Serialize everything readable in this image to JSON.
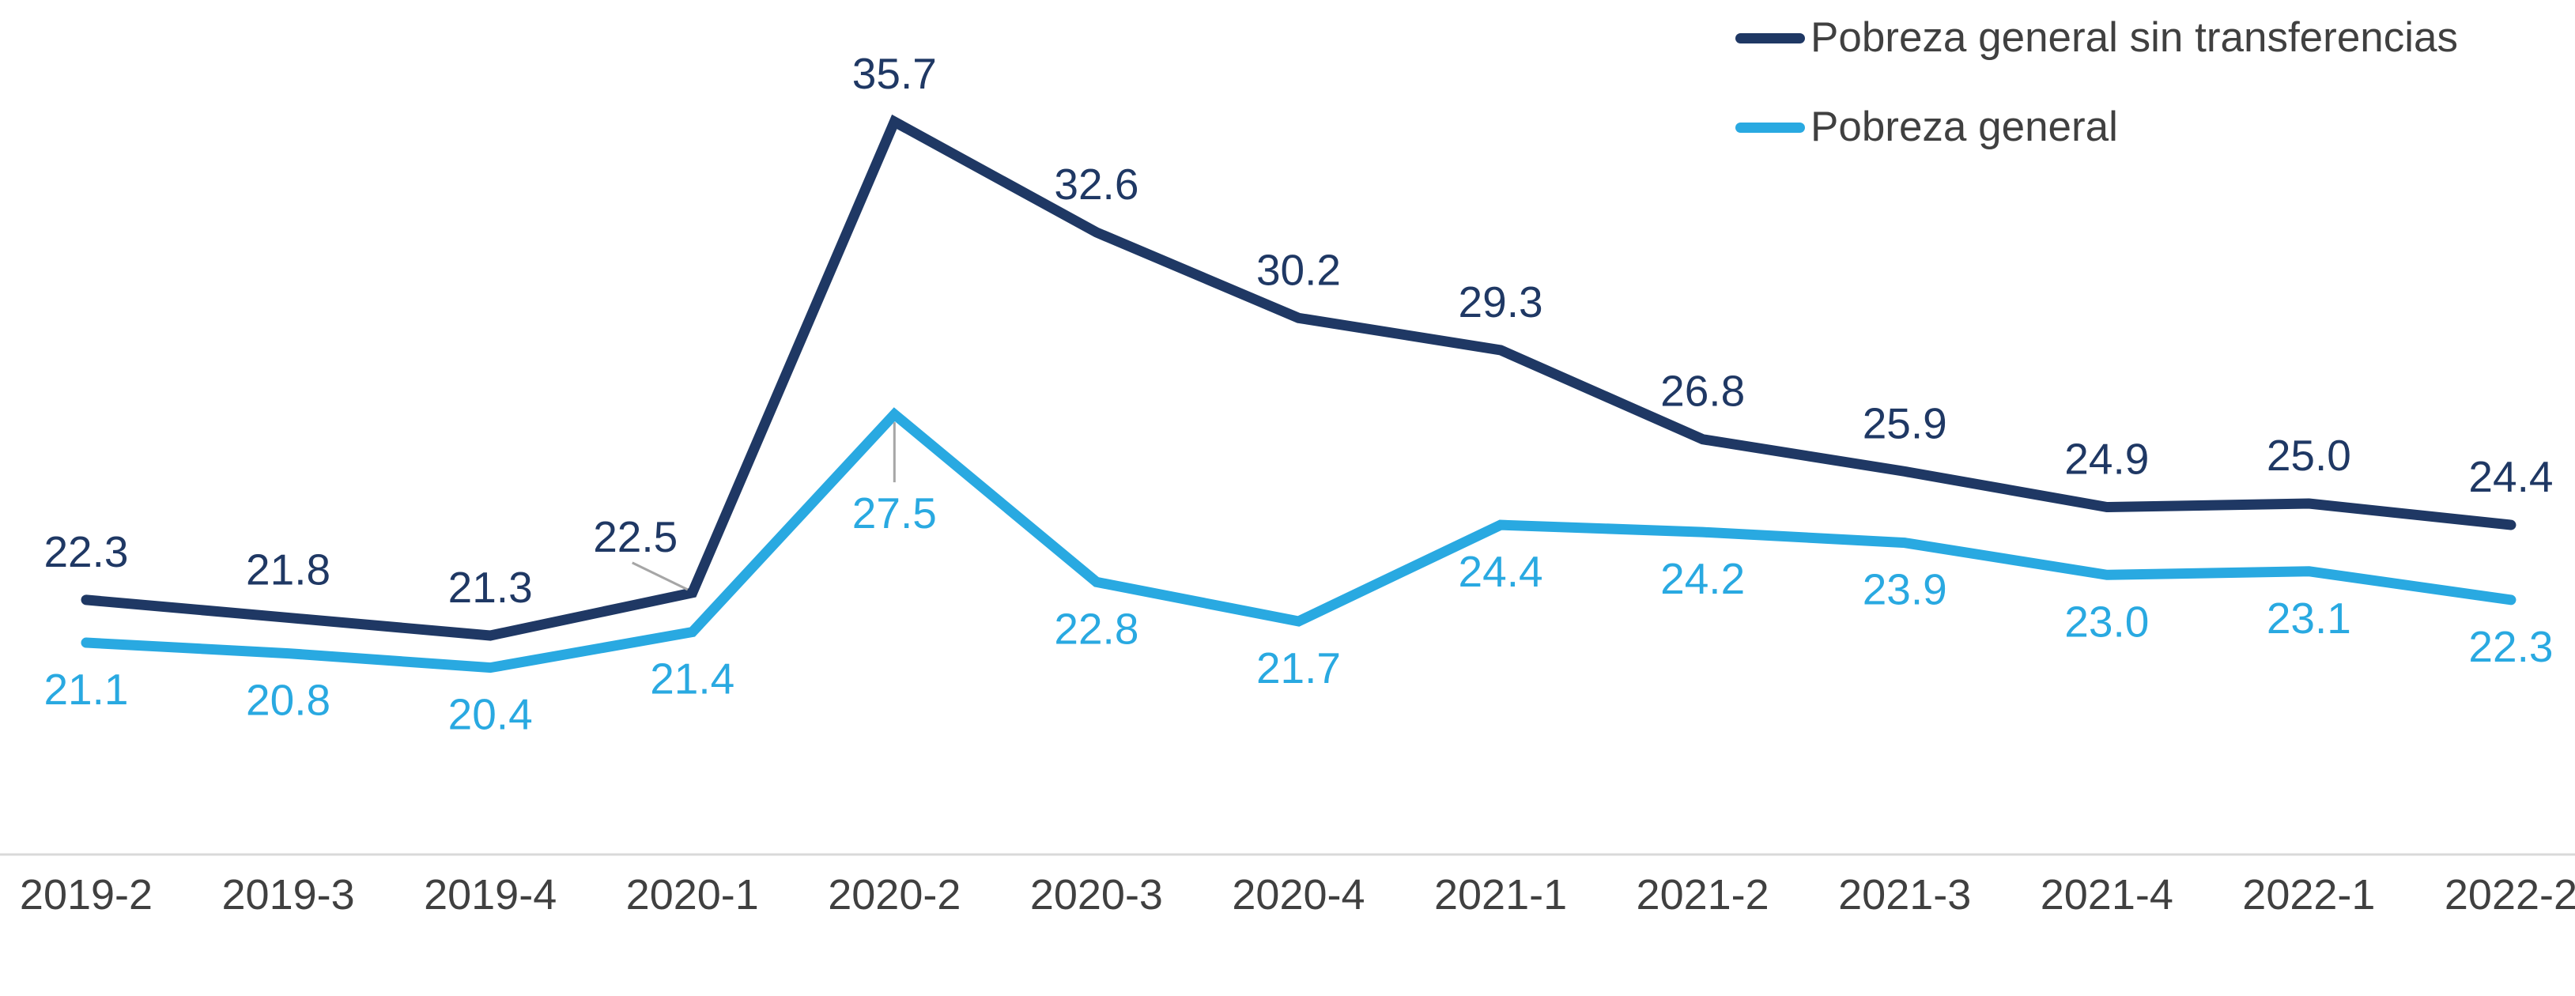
{
  "chart_data": {
    "type": "line",
    "title": "",
    "categories": [
      "2019-2",
      "2019-3",
      "2019-4",
      "2020-1",
      "2020-2",
      "2020-3",
      "2020-4",
      "2021-1",
      "2021-2",
      "2021-3",
      "2021-4",
      "2022-1",
      "2022-2"
    ],
    "series": [
      {
        "name": "Pobreza general sin transferencias",
        "color": "#1F3864",
        "values": [
          22.3,
          21.8,
          21.3,
          22.5,
          35.7,
          32.6,
          30.2,
          29.3,
          26.8,
          25.9,
          24.9,
          25.0,
          24.4
        ],
        "labels": [
          "22.3",
          "21.8",
          "21.3",
          "22.5",
          "35.7",
          "32.6",
          "30.2",
          "29.3",
          "26.8",
          "25.9",
          "24.9",
          "25.0",
          "24.4"
        ]
      },
      {
        "name": "Pobreza general",
        "color": "#29A9E1",
        "values": [
          21.1,
          20.8,
          20.4,
          21.4,
          27.5,
          22.8,
          21.7,
          24.4,
          24.2,
          23.9,
          23.0,
          23.1,
          22.3
        ],
        "labels": [
          "21.1",
          "20.8",
          "20.4",
          "21.4",
          "27.5",
          "22.8",
          "21.7",
          "24.4",
          "24.2",
          "23.9",
          "23.0",
          "23.1",
          "22.3"
        ]
      }
    ],
    "xlabel": "",
    "ylabel": "",
    "y_axis_visible": false,
    "grid": false,
    "value_labels_shown": true,
    "legend_position": "top-right",
    "axis_line_color": "#D9D9D9",
    "tick_label_color": "#404040",
    "legend_text_color": "#404040",
    "leader_line_color": "#A6A6A6",
    "background_color": "#FFFFFF"
  }
}
